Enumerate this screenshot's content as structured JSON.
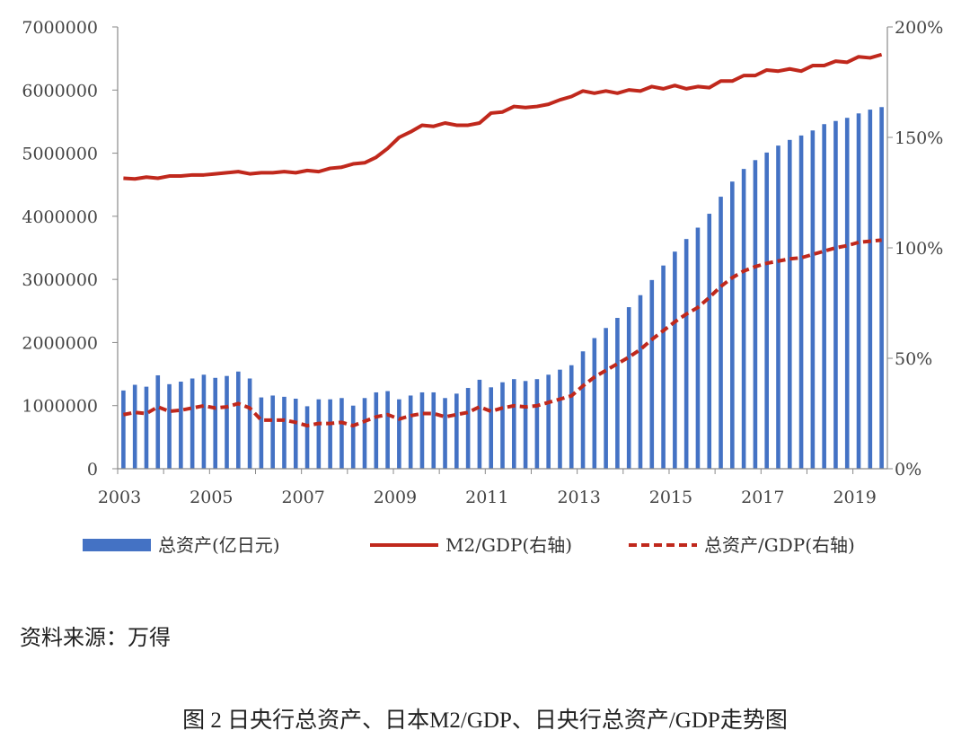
{
  "chart_data": {
    "type": "bar",
    "title": "",
    "x": [
      "2003Q1",
      "2003Q2",
      "2003Q3",
      "2003Q4",
      "2004Q1",
      "2004Q2",
      "2004Q3",
      "2004Q4",
      "2005Q1",
      "2005Q2",
      "2005Q3",
      "2005Q4",
      "2006Q1",
      "2006Q2",
      "2006Q3",
      "2006Q4",
      "2007Q1",
      "2007Q2",
      "2007Q3",
      "2007Q4",
      "2008Q1",
      "2008Q2",
      "2008Q3",
      "2008Q4",
      "2009Q1",
      "2009Q2",
      "2009Q3",
      "2009Q4",
      "2010Q1",
      "2010Q2",
      "2010Q3",
      "2010Q4",
      "2011Q1",
      "2011Q2",
      "2011Q3",
      "2011Q4",
      "2012Q1",
      "2012Q2",
      "2012Q3",
      "2012Q4",
      "2013Q1",
      "2013Q2",
      "2013Q3",
      "2013Q4",
      "2014Q1",
      "2014Q2",
      "2014Q3",
      "2014Q4",
      "2015Q1",
      "2015Q2",
      "2015Q3",
      "2015Q4",
      "2016Q1",
      "2016Q2",
      "2016Q3",
      "2016Q4",
      "2017Q1",
      "2017Q2",
      "2017Q3",
      "2017Q4",
      "2018Q1",
      "2018Q2",
      "2018Q3",
      "2018Q4",
      "2019Q1",
      "2019Q2",
      "2019Q3"
    ],
    "x_tick_labels": [
      "2003",
      "2005",
      "2007",
      "2009",
      "2011",
      "2013",
      "2015",
      "2017",
      "2019"
    ],
    "y_tick_labels": [
      "0",
      "1000000",
      "2000000",
      "3000000",
      "4000000",
      "5000000",
      "6000000",
      "7000000"
    ],
    "y2_tick_labels": [
      "0%",
      "50%",
      "100%",
      "150%",
      "200%"
    ],
    "ylim": [
      0,
      7000000
    ],
    "y2lim": [
      0,
      200
    ],
    "grid": false,
    "legend_position": "bottom",
    "series": [
      {
        "name": "总资产(亿日元)",
        "type": "bar",
        "axis": "left",
        "color": "#4472c4",
        "values": [
          1240000,
          1330000,
          1300000,
          1480000,
          1340000,
          1380000,
          1430000,
          1490000,
          1440000,
          1470000,
          1540000,
          1430000,
          1130000,
          1160000,
          1140000,
          1110000,
          990000,
          1100000,
          1100000,
          1120000,
          1000000,
          1120000,
          1210000,
          1230000,
          1100000,
          1160000,
          1210000,
          1210000,
          1120000,
          1190000,
          1280000,
          1410000,
          1290000,
          1370000,
          1420000,
          1390000,
          1420000,
          1490000,
          1570000,
          1640000,
          1860000,
          2070000,
          2230000,
          2390000,
          2560000,
          2750000,
          2990000,
          3220000,
          3440000,
          3640000,
          3820000,
          4040000,
          4310000,
          4550000,
          4750000,
          4890000,
          5010000,
          5120000,
          5210000,
          5280000,
          5360000,
          5460000,
          5510000,
          5560000,
          5630000,
          5690000,
          5730000
        ]
      },
      {
        "name": "M2/GDP(右轴)",
        "type": "line",
        "axis": "right",
        "color": "#c0281c",
        "values": [
          131.5,
          131.2,
          132.0,
          131.5,
          132.5,
          132.5,
          133.0,
          133.0,
          133.5,
          134.0,
          134.5,
          133.5,
          134.0,
          134.0,
          134.5,
          134.0,
          135.0,
          134.5,
          136.0,
          136.5,
          138.0,
          138.5,
          141.0,
          145.0,
          150.0,
          152.5,
          155.5,
          155.0,
          156.5,
          155.5,
          155.5,
          156.5,
          161.0,
          161.5,
          164.0,
          163.5,
          164.0,
          165.0,
          167.0,
          168.5,
          171.0,
          170.0,
          171.0,
          170.0,
          171.5,
          171.0,
          173.0,
          172.0,
          173.5,
          172.0,
          173.0,
          172.5,
          175.5,
          175.5,
          178.0,
          178.0,
          180.5,
          180.0,
          181.0,
          180.0,
          182.5,
          182.5,
          184.5,
          184.0,
          186.5,
          186.0,
          187.5
        ]
      },
      {
        "name": "总资产/GDP(右轴)",
        "type": "line",
        "axis": "right",
        "color": "#c0281c",
        "dashed": true,
        "values": [
          24.5,
          25.5,
          25.0,
          28.0,
          26.0,
          26.5,
          27.5,
          28.5,
          27.5,
          28.0,
          29.5,
          27.5,
          22.0,
          22.0,
          22.0,
          21.0,
          19.5,
          20.5,
          20.5,
          21.0,
          19.5,
          21.5,
          23.5,
          24.5,
          22.5,
          24.0,
          25.0,
          25.0,
          23.5,
          24.5,
          25.5,
          28.0,
          26.0,
          27.5,
          28.5,
          28.0,
          28.5,
          30.0,
          31.5,
          33.0,
          37.5,
          41.5,
          44.5,
          47.5,
          50.5,
          54.0,
          58.5,
          62.5,
          66.5,
          70.0,
          73.0,
          77.5,
          82.5,
          86.5,
          89.5,
          91.5,
          93.0,
          94.0,
          95.0,
          95.5,
          97.0,
          98.5,
          100.0,
          101.0,
          102.5,
          103.0,
          103.5
        ]
      }
    ]
  },
  "source_text": "资料来源：万得",
  "caption": "图 2  日央行总资产、日本M2/GDP、日央行总资产/GDP走势图"
}
